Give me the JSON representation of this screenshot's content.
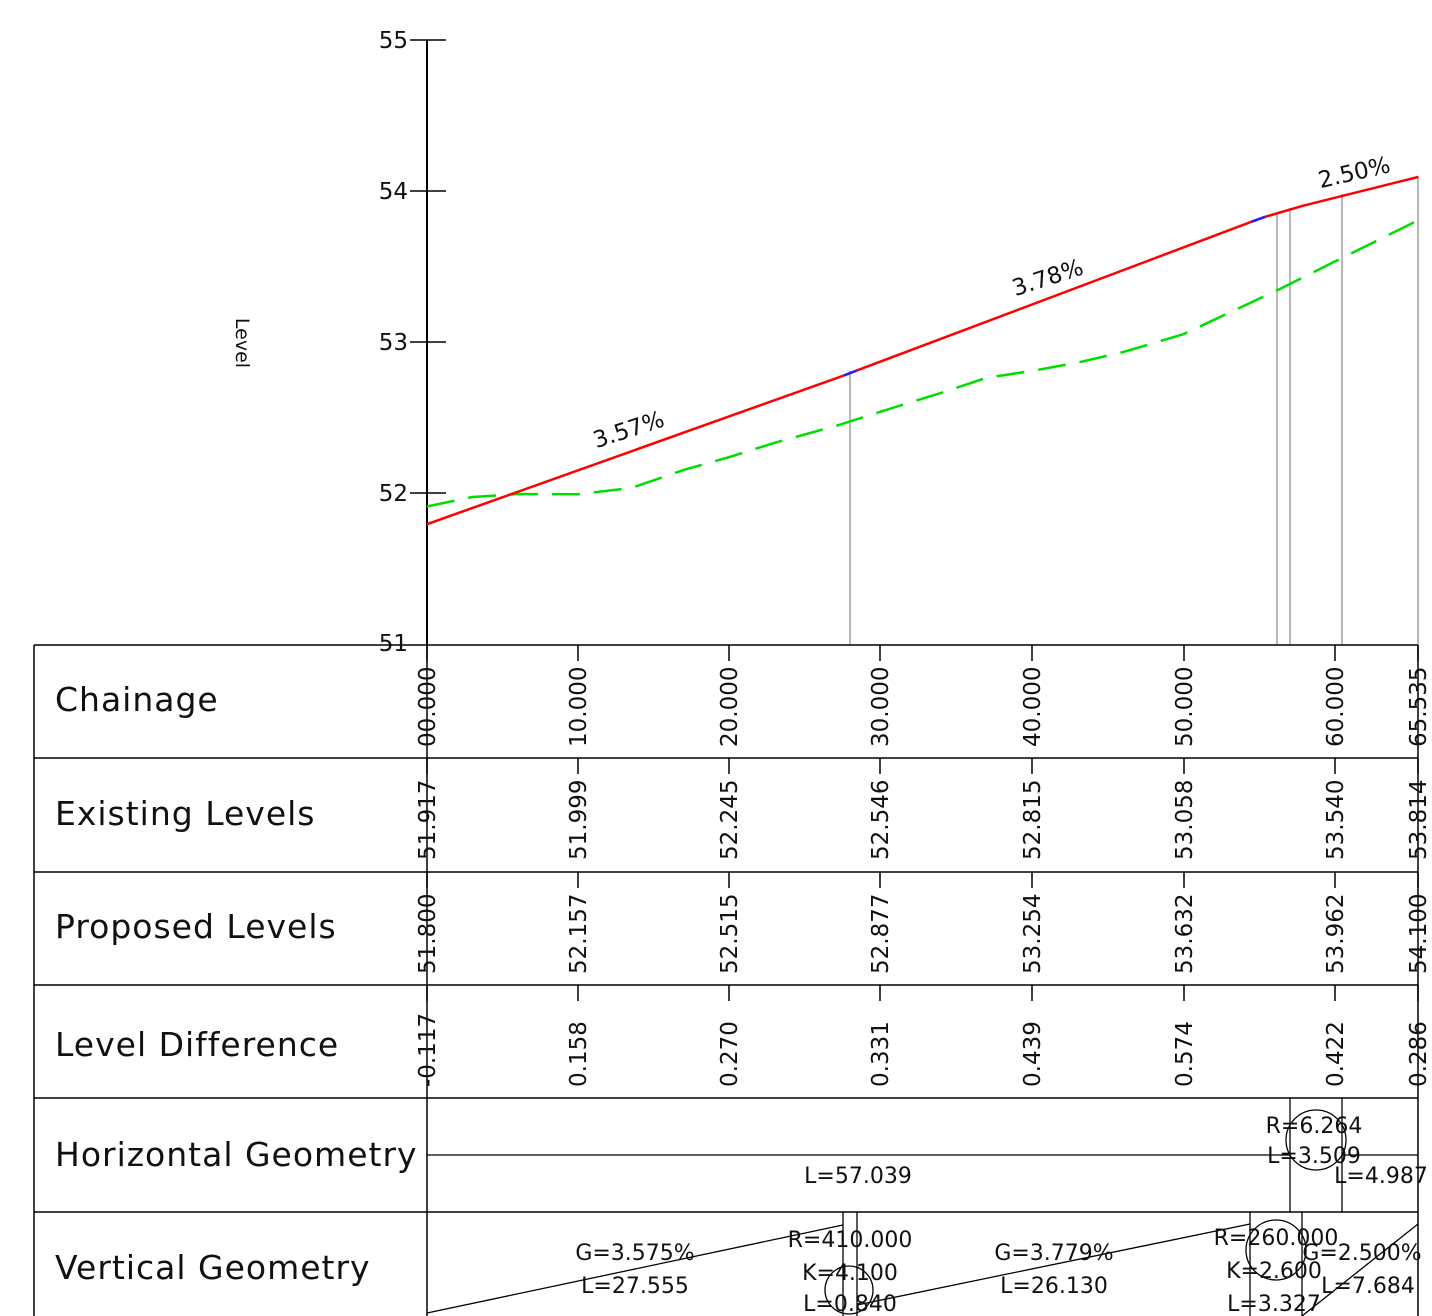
{
  "axis": {
    "y_label": "Level",
    "y_ticks": [
      "51",
      "52",
      "53",
      "54",
      "55"
    ]
  },
  "colors": {
    "proposed": "#ff0000",
    "existing": "#00dd00",
    "curve": "#2222ff",
    "lines": "#000000",
    "verticals": "#888888"
  },
  "chart_data": {
    "type": "line",
    "xlabel": "",
    "ylabel": "Level",
    "ylim": [
      51,
      55
    ],
    "xlim": [
      0,
      65.535
    ],
    "series": [],
    "proposed_profile": {
      "x": [
        0,
        27.555,
        28.395,
        54.525,
        55.4,
        57.852,
        65.535
      ],
      "y": [
        51.8,
        52.785,
        52.817,
        53.804,
        53.836,
        53.908,
        54.1
      ]
    },
    "existing_profile": {
      "x": [
        0,
        3,
        6,
        10,
        13.5,
        17,
        20,
        23,
        27,
        30,
        34,
        37,
        40,
        43,
        46,
        50,
        53,
        56,
        60,
        65.535
      ],
      "y": [
        51.917,
        51.98,
        52.0,
        51.999,
        52.04,
        52.16,
        52.245,
        52.34,
        52.45,
        52.546,
        52.67,
        52.77,
        52.815,
        52.87,
        52.94,
        53.058,
        53.2,
        53.34,
        53.54,
        53.814
      ]
    },
    "grades": [
      "3.57%",
      "3.78%",
      "2.50%"
    ]
  },
  "table": {
    "rows": [
      {
        "label": "Chainage",
        "values": [
          "00.000",
          "10.000",
          "20.000",
          "30.000",
          "40.000",
          "50.000",
          "60.000",
          "65.535"
        ]
      },
      {
        "label": "Existing Levels",
        "values": [
          "51.917",
          "51.999",
          "52.245",
          "52.546",
          "52.815",
          "53.058",
          "53.540",
          "53.814"
        ]
      },
      {
        "label": "Proposed Levels",
        "values": [
          "51.800",
          "52.157",
          "52.515",
          "52.877",
          "53.254",
          "53.632",
          "53.962",
          "54.100"
        ]
      },
      {
        "label": "Level Difference",
        "values": [
          "-0.117",
          "0.158",
          "0.270",
          "0.331",
          "0.439",
          "0.574",
          "0.422",
          "0.286"
        ]
      },
      {
        "label": "Horizontal Geometry"
      },
      {
        "label": "Vertical Geometry"
      }
    ],
    "horizontal_geometry": {
      "straight": "L=57.039",
      "curve_radius": "R=6.264",
      "curve_length": "L=3.509",
      "end_straight": "L=4.987"
    },
    "vertical_geometry": {
      "grade1": "G=3.575%",
      "length1": "L=27.555",
      "curve1_radius": "R=410.000",
      "curve1_k": "K=4.100",
      "curve1_length": "L=0.840",
      "grade2": "G=3.779%",
      "length2": "L=26.130",
      "curve2_radius": "R=260.000",
      "curve2_k": "K=2.600",
      "curve2_length": "L=3.327",
      "grade3": "G=2.500%",
      "length3": "L=7.684"
    }
  }
}
